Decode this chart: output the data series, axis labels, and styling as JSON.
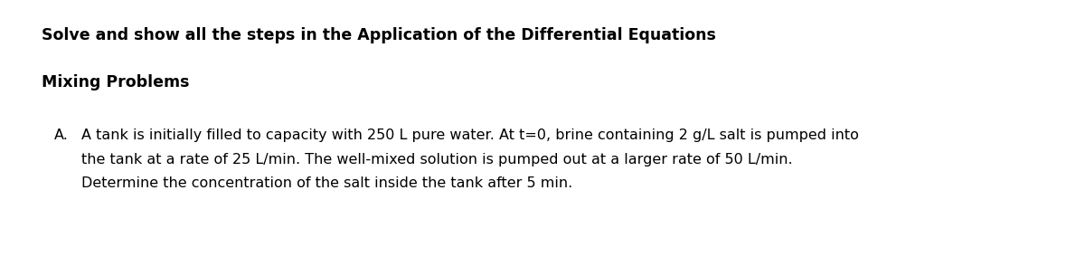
{
  "background_color": "#ffffff",
  "title_text": "Solve and show all the steps in the Application of the Differential Equations",
  "title_fontsize": 12.5,
  "title_fontweight": "bold",
  "subtitle_text": "Mixing Problems",
  "subtitle_fontsize": 12.5,
  "subtitle_fontweight": "bold",
  "label_A_text": "A.",
  "body_line1": "A tank is initially filled to capacity with 250 L pure water. At t=0, brine containing 2 g/L salt is pumped into",
  "body_line2": "the tank at a rate of 25 L/min. The well-mixed solution is pumped out at a larger rate of 50 L/min.",
  "body_line3": "Determine the concentration of the salt inside the tank after 5 min.",
  "body_fontsize": 11.5,
  "text_color": "#000000",
  "fig_width": 12.0,
  "fig_height": 2.84
}
